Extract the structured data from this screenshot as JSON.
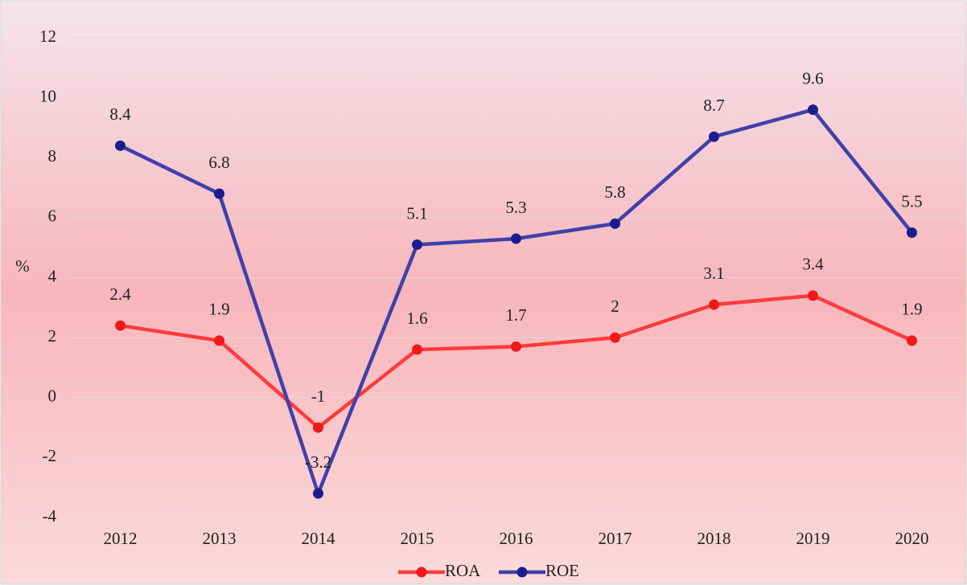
{
  "chart_data": {
    "type": "line",
    "y_label": "%",
    "categories": [
      "2012",
      "2013",
      "2014",
      "2015",
      "2016",
      "2017",
      "2018",
      "2019",
      "2020"
    ],
    "series": [
      {
        "name": "ROA",
        "color": "#ff3b3b",
        "marker_color": "#f01818",
        "values": [
          2.4,
          1.9,
          -1,
          1.6,
          1.7,
          2,
          3.1,
          3.4,
          1.9
        ]
      },
      {
        "name": "ROE",
        "color": "#4040a8",
        "marker_color": "#1c1c8c",
        "values": [
          8.4,
          6.8,
          -3.2,
          5.1,
          5.3,
          5.8,
          8.7,
          9.6,
          5.5
        ]
      }
    ],
    "ylim": [
      -4,
      12
    ],
    "yticks": [
      -4,
      -2,
      0,
      2,
      4,
      6,
      8,
      10,
      12
    ],
    "grid": true,
    "legend": "bottom"
  }
}
